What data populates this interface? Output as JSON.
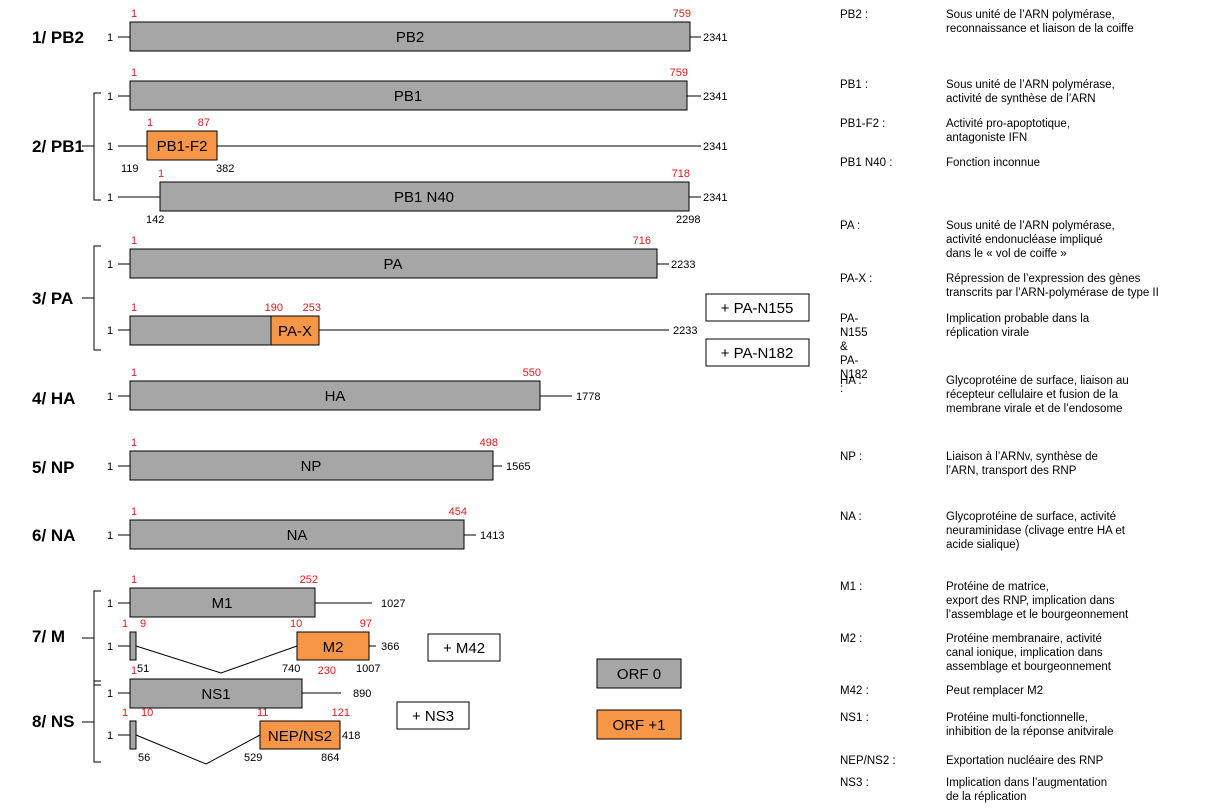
{
  "colors": {
    "orf0": "#a6a6a6",
    "orf1": "#f79646",
    "red": "#e8191d",
    "line": "#000000"
  },
  "segments": [
    {
      "label": "1/ PB2"
    },
    {
      "label": "2/ PB1"
    },
    {
      "label": "3/ PA"
    },
    {
      "label": "4/ HA"
    },
    {
      "label": "5/ NP"
    },
    {
      "label": "6/ NA"
    },
    {
      "label": "7/ M"
    },
    {
      "label": "8/ NS"
    }
  ],
  "tracks": [
    {
      "id": "pb2",
      "box": "PB2",
      "orf": 0,
      "start": "1",
      "end": "2341",
      "aa_start": "1",
      "aa_end": "759"
    },
    {
      "id": "pb1",
      "box": "PB1",
      "orf": 0,
      "start": "1",
      "end": "2341",
      "aa_start": "1",
      "aa_end": "759"
    },
    {
      "id": "pb1f2",
      "box": "PB1-F2",
      "orf": 1,
      "start": "1",
      "end": "2341",
      "aa_start": "1",
      "aa_end": "87",
      "nt_start": "119",
      "nt_end": "382"
    },
    {
      "id": "pb1n40",
      "box": "PB1 N40",
      "orf": 0,
      "start": "1",
      "end": "2341",
      "aa_start": "1",
      "aa_end": "718",
      "nt_start": "142",
      "nt_end": "2298"
    },
    {
      "id": "pa",
      "box": "PA",
      "orf": 0,
      "start": "1",
      "end": "2233",
      "aa_start": "1",
      "aa_end": "716"
    },
    {
      "id": "pax",
      "box": "PA-X",
      "orf": 1,
      "start": "1",
      "end": "2233",
      "aa_start": "1",
      "aa_mid": "190",
      "aa_end": "253"
    },
    {
      "id": "ha",
      "box": "HA",
      "orf": 0,
      "start": "1",
      "end": "1778",
      "aa_start": "1",
      "aa_end": "550"
    },
    {
      "id": "np",
      "box": "NP",
      "orf": 0,
      "start": "1",
      "end": "1565",
      "aa_start": "1",
      "aa_end": "498"
    },
    {
      "id": "na",
      "box": "NA",
      "orf": 0,
      "start": "1",
      "end": "1413",
      "aa_start": "1",
      "aa_end": "454"
    },
    {
      "id": "m1",
      "box": "M1",
      "orf": 0,
      "start": "1",
      "end": "1027",
      "aa_start": "1",
      "aa_end": "252"
    },
    {
      "id": "m2",
      "box": "M2",
      "orf": 1,
      "start": "1",
      "end": "366",
      "aa_start": "1",
      "aa_exon_end": "9",
      "aa_exon2_start": "10",
      "aa_end": "97",
      "nt_a": "51",
      "nt_b": "740",
      "nt_c": "1007"
    },
    {
      "id": "ns1",
      "box": "NS1",
      "orf": 0,
      "start": "1",
      "end": "890",
      "aa_start": "1",
      "aa_end": "230"
    },
    {
      "id": "nep",
      "box": "NEP/NS2",
      "orf": 1,
      "start": "1",
      "end": "418",
      "aa_start": "1",
      "aa_exon_end": "10",
      "aa_exon2_start": "11",
      "aa_end": "121",
      "nt_a": "56",
      "nt_b": "529",
      "nt_c": "864"
    }
  ],
  "extras": {
    "pa_n155": "+ PA-N155",
    "pa_n182": "+ PA-N182",
    "m42": "+ M42",
    "ns3": "+ NS3"
  },
  "legend": {
    "orf0": "ORF 0",
    "orf1": "ORF +1"
  },
  "functions": [
    {
      "k": "PB2 :",
      "d": "Sous unité de l’ARN polymérase,\nreconnaissance et liaison de la coiffe"
    },
    {
      "k": "PB1 :",
      "d": "Sous unité de l’ARN polymérase,\nactivité de synthèse de l’ARN"
    },
    {
      "k": "PB1-F2 :",
      "d": "Activité pro-apoptotique,\nantagoniste IFN"
    },
    {
      "k": "PB1 N40 :",
      "d": "Fonction inconnue"
    },
    {
      "k": "PA :",
      "d": "Sous unité de l’ARN polymérase,\nactivité endonucléase impliqué\ndans le « vol de coiffe »"
    },
    {
      "k": "PA-X :",
      "d": "Répression de l’expression des gènes\ntranscrits par l’ARN-polymérase de type II"
    },
    {
      "k": "PA-N155\n& PA-N182 :",
      "d": "Implication probable dans la\nréplication virale"
    },
    {
      "k": "HA :",
      "d": "Glycoprotéine de surface, liaison au\nrécepteur cellulaire et fusion de la\nmembrane virale et de l’endosome"
    },
    {
      "k": "NP :",
      "d": "Liaison à l’ARNv, synthèse de\nl’ARN, transport des RNP"
    },
    {
      "k": "NA :",
      "d": "Glycoprotéine de surface, activité\nneuraminidase (clivage entre HA et\nacide sialique)"
    },
    {
      "k": "M1 :",
      "d": "Protéine de matrice,\nexport des RNP, implication dans\nl’assemblage et le bourgeonnement"
    },
    {
      "k": "M2 :",
      "d": "Protéine membranaire, activité\ncanal ionique, implication dans\nassemblage et bourgeonnement"
    },
    {
      "k": "M42 :",
      "d": "Peut remplacer M2"
    },
    {
      "k": "NS1 :",
      "d": "Protéine multi-fonctionnelle,\ninhibition de la réponse anitvirale"
    },
    {
      "k": "NEP/NS2 :",
      "d": "Exportation nucléaire des RNP"
    },
    {
      "k": "NS3 :",
      "d": "Implication dans l’augmentation\nde la réplication"
    }
  ]
}
